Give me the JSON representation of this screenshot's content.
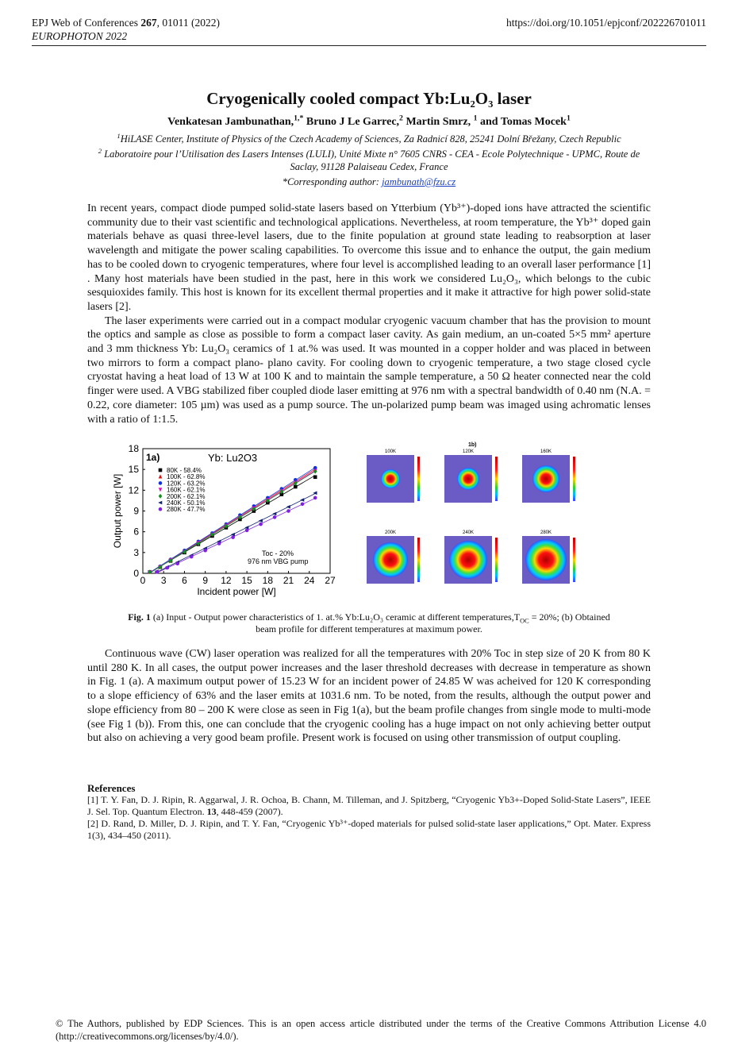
{
  "header": {
    "journal_pre": "EPJ Web of Conferences ",
    "volume": "267",
    "journal_post": ", 01011 (2022)",
    "conference": "EUROPHOTON 2022",
    "doi": "https://doi.org/10.1051/epjconf/202226701011"
  },
  "title": "Cryogenically cooled compact Yb:Lu₂O₃ laser",
  "authors": {
    "a1": "Venkatesan Jambunathan,",
    "a1_sup": "1,*",
    "a2": " Bruno J Le Garrec,",
    "a2_sup": "2",
    "a3": " Martin Smrz, ",
    "a3_sup": "1",
    "a4": "  and Tomas Mocek",
    "a4_sup": "1"
  },
  "affiliations": {
    "aff1_sup": "1",
    "aff1": "HiLASE Center, Institute of Physics of the Czech Academy of Sciences, Za Radnicí 828, 25241 Dolní Břežany, Czech Republic",
    "aff2_sup": "2",
    "aff2": " Laboratoire pour l’Utilisation des Lasers Intenses (LULI), Unité Mixte n° 7605 CNRS - CEA - Ecole Polytechnique - UPMC, Route de Saclay, 91128 Palaiseau Cedex, France",
    "corr_label": "*Corresponding author: ",
    "corr_email": "jambunath@fzu.cz"
  },
  "paragraphs": {
    "p1": "In recent years, compact diode pumped solid-state lasers based on Ytterbium (Yb³⁺)-doped ions have attracted the scientific community due to their vast scientific and technological applications.  Nevertheless, at room temperature, the Yb³⁺ doped gain materials behave as quasi three-level lasers, due to the finite population at ground state leading to reabsorption at laser wavelength and mitigate the power scaling capabilities. To overcome this issue and to enhance the output, the gain medium has to be cooled down to cryogenic temperatures, where four level is accomplished leading to an overall laser performance [1] . Many host materials have been studied in the past, here in this work we considered Lu₂O₃, which belongs to the cubic sesquioxides family. This host is known for its excellent thermal properties and it make it attractive for high power solid-state lasers [2].",
    "p2": "The laser experiments were carried out in a compact modular cryogenic vacuum chamber that has the provision to mount the optics and sample as close as possible to form a compact laser cavity. As gain medium, an un-coated 5×5 mm² aperture and 3 mm thickness Yb: Lu₂O₃ ceramics of 1 at.% was used.  It was mounted in a copper holder and was placed in between two mirrors to form a compact plano- plano cavity.   For cooling down to cryogenic temperature, a two stage closed cycle cryostat having a heat load of  13 W at 100 K and to maintain the sample temperature, a 50 Ω heater connected near the cold finger were used. A VBG stabilized fiber coupled diode laser emitting at 976 nm with a spectral bandwidth of 0.40 nm (N.A. = 0.22, core diameter: 105 µm) was used as a pump source. The un-polarized pump beam was imaged using achromatic lenses with a ratio of 1:1.5.",
    "p3": "Continuous wave (CW) laser operation was realized for all the temperatures with 20% Toc in step size of 20 K from 80 K until 280 K.  In all cases, the output power increases and the laser threshold decreases with decrease in temperature as shown in Fig. 1 (a). A maximum output power of 15.23 W for an incident power of 24.85 W was acheived for 120 K corresponding to a slope efficiency of 63% and the laser emits at 1031.6 nm. To be noted, from the results, although the output power and slope efficiency from 80 – 200 K were close as seen in Fig 1(a), but the beam profile changes from single mode to multi-mode (see Fig 1 (b)). From this, one can conclude that the cryogenic cooling has a huge impact on not only achieving better output but also on achieving a very good beam profile. Present work is focused on using other transmission of output coupling."
  },
  "caption": {
    "label": "Fig. 1",
    "text": " (a) Input - Output power characteristics of 1. at.% Yb:Lu₂O₃ ceramic at different temperatures,T",
    "sub": "OC",
    "text2": " = 20%; (b) Obtained beam profile for different temperatures at maximum power."
  },
  "references": {
    "heading": "References",
    "r1_pre": "[1] T. Y. Fan, D. J. Ripin, R. Aggarwal, J. R. Ochoa, B. Chann, M. Tilleman, and J. Spitzberg, “Cryogenic Yb3+-Doped Solid-State Lasers”, IEEE J. Sel. Top.  Quantum Electron. ",
    "r1_vol": "13",
    "r1_post": ", 448-459 (2007).",
    "r2": "[2] D. Rand, D. Miller, D. J. Ripin, and T. Y. Fan, “Cryogenic Yb³⁺-doped materials for pulsed solid-state laser applications,” Opt. Mater. Express 1(3), 434–450 (2011)."
  },
  "footer": "© The Authors, published by EDP Sciences. This is an open access article distributed under the terms of the Creative Commons Attribution License 4.0 (http://creativecommons.org/licenses/by/4.0/).",
  "figure_b": {
    "label": "1b)",
    "panels": [
      {
        "temp": "100K"
      },
      {
        "temp": "120K"
      },
      {
        "temp": "160K"
      },
      {
        "temp": "200K"
      },
      {
        "temp": "240K"
      },
      {
        "temp": "280K"
      }
    ]
  },
  "chart_data": {
    "type": "scatter",
    "panel_label": "1a)",
    "title": "Yb: Lu2O3",
    "xlabel": "Incident power [W]",
    "ylabel": "Output power [W]",
    "xlim": [
      0,
      27
    ],
    "ylim": [
      0,
      18
    ],
    "xticks": [
      0,
      3,
      6,
      9,
      12,
      15,
      18,
      21,
      24,
      27
    ],
    "yticks": [
      0,
      3,
      6,
      9,
      12,
      15,
      18
    ],
    "annotation": [
      "Toc - 20%",
      "976 nm VBG pump"
    ],
    "legend_position": "upper-left",
    "series": [
      {
        "name": "80K - 58.4%",
        "color": "#000000",
        "marker": "square",
        "points": [
          [
            1,
            0.2
          ],
          [
            2.5,
            0.9
          ],
          [
            4,
            1.8
          ],
          [
            6,
            3.0
          ],
          [
            8,
            4.2
          ],
          [
            10,
            5.4
          ],
          [
            12,
            6.6
          ],
          [
            14,
            7.8
          ],
          [
            16,
            9.0
          ],
          [
            18,
            10.2
          ],
          [
            20,
            11.4
          ],
          [
            22,
            12.5
          ],
          [
            24.85,
            13.9
          ]
        ]
      },
      {
        "name": "100K - 62.8%",
        "color": "#e01010",
        "marker": "triangle-up",
        "points": [
          [
            1,
            0.2
          ],
          [
            2.5,
            1.0
          ],
          [
            4,
            1.9
          ],
          [
            6,
            3.2
          ],
          [
            8,
            4.5
          ],
          [
            10,
            5.7
          ],
          [
            12,
            7.0
          ],
          [
            14,
            8.3
          ],
          [
            16,
            9.5
          ],
          [
            18,
            10.8
          ],
          [
            20,
            12.0
          ],
          [
            22,
            13.3
          ],
          [
            24.85,
            15.0
          ]
        ]
      },
      {
        "name": "120K - 63.2%",
        "color": "#1030e0",
        "marker": "circle",
        "points": [
          [
            1,
            0.2
          ],
          [
            2.5,
            1.0
          ],
          [
            4,
            2.0
          ],
          [
            6,
            3.3
          ],
          [
            8,
            4.6
          ],
          [
            10,
            5.8
          ],
          [
            12,
            7.1
          ],
          [
            14,
            8.4
          ],
          [
            16,
            9.7
          ],
          [
            18,
            10.9
          ],
          [
            20,
            12.2
          ],
          [
            22,
            13.5
          ],
          [
            24.85,
            15.23
          ]
        ]
      },
      {
        "name": "160K - 62.1%",
        "color": "#e010c0",
        "marker": "triangle-down",
        "points": [
          [
            1,
            0.2
          ],
          [
            2.5,
            0.9
          ],
          [
            4,
            1.9
          ],
          [
            6,
            3.1
          ],
          [
            8,
            4.4
          ],
          [
            10,
            5.6
          ],
          [
            12,
            6.9
          ],
          [
            14,
            8.1
          ],
          [
            16,
            9.4
          ],
          [
            18,
            10.6
          ],
          [
            20,
            11.9
          ],
          [
            22,
            13.1
          ],
          [
            24.85,
            14.8
          ]
        ]
      },
      {
        "name": "200K - 62.1%",
        "color": "#109020",
        "marker": "diamond",
        "points": [
          [
            1,
            0.2
          ],
          [
            2.5,
            0.9
          ],
          [
            4,
            1.8
          ],
          [
            6,
            3.1
          ],
          [
            8,
            4.3
          ],
          [
            10,
            5.6
          ],
          [
            12,
            6.8
          ],
          [
            14,
            8.1
          ],
          [
            16,
            9.3
          ],
          [
            18,
            10.5
          ],
          [
            20,
            11.8
          ],
          [
            22,
            13.0
          ],
          [
            24.85,
            14.7
          ]
        ]
      },
      {
        "name": "240K - 50.1%",
        "color": "#102070",
        "marker": "triangle-left",
        "points": [
          [
            2,
            0.3
          ],
          [
            3.5,
            0.9
          ],
          [
            5,
            1.6
          ],
          [
            7,
            2.6
          ],
          [
            9,
            3.6
          ],
          [
            11,
            4.6
          ],
          [
            13,
            5.6
          ],
          [
            15,
            6.6
          ],
          [
            17,
            7.6
          ],
          [
            19,
            8.6
          ],
          [
            21,
            9.6
          ],
          [
            23,
            10.6
          ],
          [
            24.85,
            11.6
          ]
        ]
      },
      {
        "name": "280K - 47.7%",
        "color": "#8020e0",
        "marker": "circle",
        "points": [
          [
            2,
            0.2
          ],
          [
            3.5,
            0.8
          ],
          [
            5,
            1.4
          ],
          [
            7,
            2.4
          ],
          [
            9,
            3.3
          ],
          [
            11,
            4.3
          ],
          [
            13,
            5.2
          ],
          [
            15,
            6.2
          ],
          [
            17,
            7.1
          ],
          [
            19,
            8.1
          ],
          [
            21,
            9.0
          ],
          [
            23,
            10.0
          ],
          [
            24.85,
            10.9
          ]
        ]
      }
    ]
  }
}
